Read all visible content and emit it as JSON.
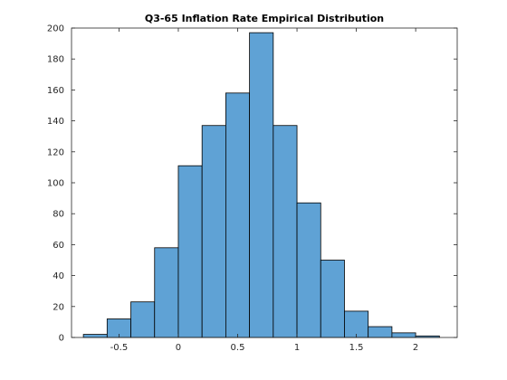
{
  "chart_data": {
    "type": "bar",
    "title": "Q3-65 Inflation Rate Empirical Distribution",
    "xlabel": "",
    "ylabel": "",
    "bin_edges": [
      -0.8,
      -0.6,
      -0.4,
      -0.2,
      0,
      0.2,
      0.4,
      0.6,
      0.8,
      1.0,
      1.2,
      1.4,
      1.6,
      1.8,
      2.0,
      2.2
    ],
    "values": [
      2,
      12,
      23,
      58,
      111,
      137,
      158,
      197,
      137,
      87,
      50,
      17,
      7,
      3,
      1
    ],
    "xlim": [
      -0.9,
      2.35
    ],
    "ylim": [
      0,
      200
    ],
    "xticks": [
      -0.5,
      0,
      0.5,
      1,
      1.5,
      2
    ],
    "xtick_labels": [
      "-0.5",
      "0",
      "0.5",
      "1",
      "1.5",
      "2"
    ],
    "yticks": [
      0,
      20,
      40,
      60,
      80,
      100,
      120,
      140,
      160,
      180,
      200
    ],
    "ytick_labels": [
      "0",
      "20",
      "40",
      "60",
      "80",
      "100",
      "120",
      "140",
      "160",
      "180",
      "200"
    ],
    "bar_color": "#5fa2d5",
    "edge_color": "#000000",
    "grid": false,
    "legend": "none"
  }
}
